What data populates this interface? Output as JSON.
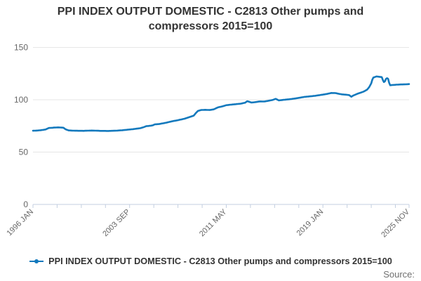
{
  "title": "PPI INDEX OUTPUT DOMESTIC - C2813 Other pumps and compressors 2015=100",
  "legend": {
    "label": "PPI INDEX OUTPUT DOMESTIC - C2813 Other pumps and compressors 2015=100"
  },
  "source_label": "Source:",
  "colors": {
    "line": "#1379bd",
    "grid": "#e6e6e6",
    "axis": "#c3cfe0",
    "tick_label": "#666666",
    "title_text": "#333333",
    "source_text": "#707070"
  },
  "chart_data": {
    "type": "line",
    "title": "PPI INDEX OUTPUT DOMESTIC - C2813 Other pumps and compressors 2015=100",
    "xlabel": "",
    "ylabel": "",
    "legend_position": "bottom",
    "grid": true,
    "x_axis": {
      "start_month": "1996 JAN",
      "end_month": "2025 NOV",
      "total_months": 358,
      "tick_labels": [
        "1996 JAN",
        "2003 SEP",
        "2011 MAY",
        "2019 JAN",
        "2025 NOV"
      ],
      "tick_label_months": [
        0,
        92,
        184,
        276,
        358
      ],
      "minor_tick_interval_months": 23
    },
    "y_axis": {
      "ticks": [
        0,
        50,
        100,
        150
      ],
      "range": [
        0,
        150
      ]
    },
    "series": [
      {
        "name": "PPI INDEX OUTPUT DOMESTIC - C2813 Other pumps and compressors 2015=100",
        "note": "anchor_points are [months_since_1996_JAN, index_value]; monthly values are linearly interpolated between anchors",
        "anchor_points": [
          [
            0,
            70.4
          ],
          [
            4,
            70.6
          ],
          [
            8,
            71.0
          ],
          [
            12,
            71.6
          ],
          [
            15,
            73.0
          ],
          [
            20,
            73.4
          ],
          [
            24,
            73.6
          ],
          [
            29,
            73.3
          ],
          [
            31,
            71.8
          ],
          [
            34,
            70.7
          ],
          [
            40,
            70.4
          ],
          [
            48,
            70.3
          ],
          [
            56,
            70.6
          ],
          [
            64,
            70.3
          ],
          [
            72,
            70.2
          ],
          [
            80,
            70.5
          ],
          [
            84,
            70.8
          ],
          [
            90,
            71.4
          ],
          [
            96,
            72.0
          ],
          [
            102,
            72.8
          ],
          [
            106,
            74.0
          ],
          [
            108,
            74.8
          ],
          [
            112,
            75.2
          ],
          [
            114,
            75.6
          ],
          [
            116,
            76.5
          ],
          [
            120,
            76.8
          ],
          [
            126,
            77.9
          ],
          [
            132,
            79.3
          ],
          [
            138,
            80.5
          ],
          [
            144,
            81.8
          ],
          [
            150,
            83.8
          ],
          [
            153,
            84.8
          ],
          [
            155,
            87.3
          ],
          [
            157,
            89.3
          ],
          [
            160,
            90.2
          ],
          [
            164,
            90.4
          ],
          [
            168,
            90.2
          ],
          [
            172,
            90.8
          ],
          [
            176,
            92.7
          ],
          [
            180,
            93.6
          ],
          [
            184,
            94.8
          ],
          [
            188,
            95.3
          ],
          [
            192,
            95.7
          ],
          [
            198,
            96.3
          ],
          [
            202,
            97.2
          ],
          [
            204,
            98.6
          ],
          [
            206,
            98.0
          ],
          [
            208,
            97.3
          ],
          [
            212,
            97.8
          ],
          [
            216,
            98.4
          ],
          [
            220,
            98.3
          ],
          [
            224,
            99.0
          ],
          [
            228,
            99.8
          ],
          [
            231,
            100.9
          ],
          [
            234,
            99.4
          ],
          [
            237,
            99.7
          ],
          [
            240,
            100.1
          ],
          [
            246,
            100.7
          ],
          [
            252,
            101.6
          ],
          [
            258,
            102.7
          ],
          [
            264,
            103.3
          ],
          [
            268,
            103.7
          ],
          [
            272,
            104.3
          ],
          [
            276,
            104.9
          ],
          [
            280,
            105.6
          ],
          [
            284,
            106.5
          ],
          [
            288,
            106.4
          ],
          [
            291,
            105.7
          ],
          [
            294,
            105.2
          ],
          [
            298,
            104.8
          ],
          [
            301,
            104.4
          ],
          [
            303,
            102.9
          ],
          [
            305,
            104.1
          ],
          [
            307,
            104.9
          ],
          [
            309,
            105.8
          ],
          [
            312,
            106.8
          ],
          [
            315,
            107.9
          ],
          [
            318,
            109.6
          ],
          [
            320,
            112.0
          ],
          [
            322,
            115.7
          ],
          [
            323,
            119.2
          ],
          [
            324,
            121.2
          ],
          [
            327,
            122.3
          ],
          [
            330,
            121.9
          ],
          [
            332,
            121.6
          ],
          [
            333,
            118.9
          ],
          [
            334,
            116.9
          ],
          [
            335,
            117.6
          ],
          [
            336,
            119.9
          ],
          [
            337,
            120.6
          ],
          [
            338,
            120.1
          ],
          [
            339,
            116.2
          ],
          [
            340,
            113.8
          ],
          [
            342,
            114.1
          ],
          [
            346,
            114.4
          ],
          [
            350,
            114.6
          ],
          [
            354,
            114.7
          ],
          [
            358,
            115.0
          ]
        ]
      }
    ]
  }
}
